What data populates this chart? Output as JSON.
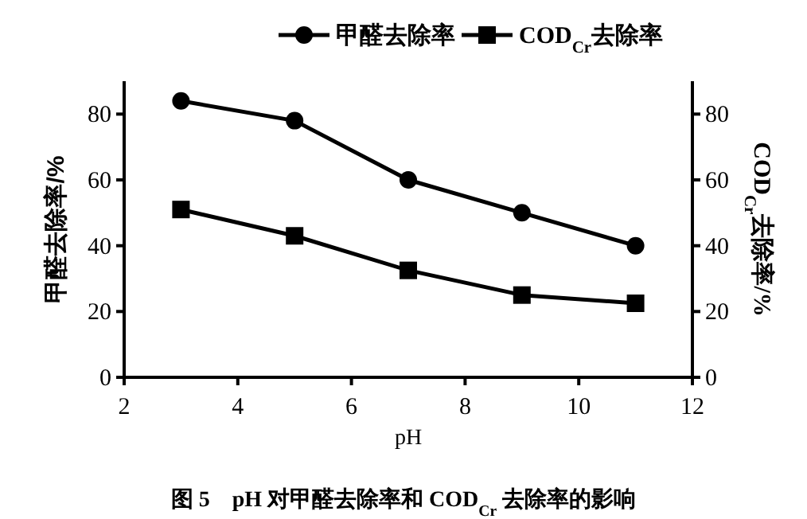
{
  "chart_data": {
    "type": "line",
    "title": "图 5　pH 对甲醛去除率和 COD$_{Cr}$ 去除率的影响",
    "xlabel": "pH",
    "ylabel": "甲醛去除率/%",
    "y2label": "COD$_{Cr}$去除率/%",
    "x": [
      3,
      5,
      7,
      9,
      11
    ],
    "series": [
      {
        "name": "甲醛去除率",
        "color": "#000000",
        "marker": "circle",
        "values": [
          84,
          78,
          60,
          50,
          40
        ]
      },
      {
        "name": "COD$_{Cr}$去除率",
        "color": "#000000",
        "marker": "square",
        "axis": "y2",
        "values": [
          51,
          43,
          32.5,
          25,
          22.5
        ]
      }
    ],
    "xlim": [
      2,
      12
    ],
    "xticks": [
      2,
      4,
      6,
      8,
      10,
      12
    ],
    "ylim": [
      0,
      90
    ],
    "yticks": [
      0,
      20,
      40,
      60,
      80
    ],
    "y2lim": [
      0,
      90
    ],
    "y2ticks": [
      0,
      20,
      40,
      60,
      80
    ],
    "grid": false,
    "legend": "top",
    "line_style": "solid"
  }
}
